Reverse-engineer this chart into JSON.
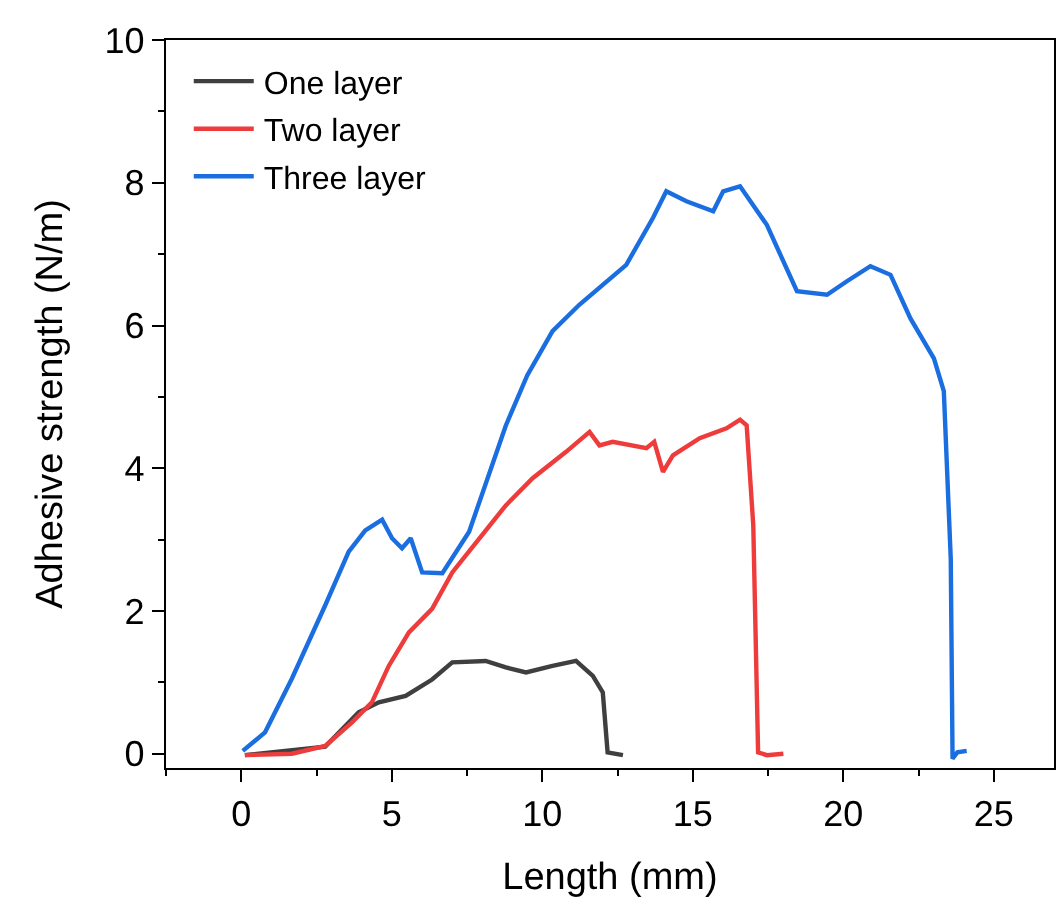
{
  "chart_data": {
    "type": "line",
    "xlabel": "Length (mm)",
    "ylabel": "Adhesive strength (N/m)",
    "xlim": [
      -2.5,
      27
    ],
    "xticks": [
      0,
      5,
      10,
      15,
      20,
      25
    ],
    "ylim": [
      -0.2,
      10
    ],
    "yticks": [
      0,
      2,
      4,
      6,
      8,
      10
    ],
    "legend": "top left",
    "marker": "none",
    "line_style": "solid",
    "series": [
      {
        "name": "One layer",
        "color": "#3f3f3f",
        "x": [
          0.12,
          2.79,
          3.9,
          4.57,
          5.46,
          6.34,
          7.01,
          8.12,
          8.79,
          9.46,
          10.34,
          11.12,
          11.68,
          12.01,
          12.17,
          12.68
        ],
        "values": [
          -0.02,
          0.1,
          0.58,
          0.72,
          0.81,
          1.04,
          1.28,
          1.3,
          1.21,
          1.14,
          1.23,
          1.3,
          1.09,
          0.86,
          0.02,
          -0.02
        ]
      },
      {
        "name": "Two layer",
        "color": "#ee3b3b",
        "x": [
          0.12,
          1.68,
          2.79,
          3.68,
          4.34,
          4.9,
          5.57,
          6.34,
          7.01,
          7.9,
          8.79,
          9.68,
          10.79,
          11.57,
          11.9,
          12.34,
          13.46,
          13.72,
          14.01,
          14.34,
          15.23,
          16.12,
          16.57,
          16.79,
          17.01,
          17.17,
          17.46,
          18.01
        ],
        "values": [
          -0.02,
          0,
          0.11,
          0.44,
          0.72,
          1.23,
          1.7,
          2.03,
          2.54,
          3.01,
          3.48,
          3.86,
          4.23,
          4.51,
          4.32,
          4.37,
          4.28,
          4.37,
          3.95,
          4.18,
          4.42,
          4.56,
          4.68,
          4.6,
          3.2,
          0.02,
          -0.02,
          0
        ]
      },
      {
        "name": "Three layer",
        "color": "#1a6ee0",
        "x": [
          0.05,
          0.79,
          1.68,
          2.79,
          3.57,
          4.12,
          4.68,
          5.01,
          5.34,
          5.63,
          6.01,
          6.68,
          7.57,
          8.79,
          9.5,
          10.34,
          11.23,
          12.79,
          13.68,
          14.12,
          14.79,
          15.68,
          16.01,
          16.57,
          17.46,
          18.46,
          19.46,
          20.12,
          20.9,
          21.57,
          22.23,
          23.01,
          23.34,
          23.57,
          23.63,
          23.79,
          24.1
        ],
        "values": [
          0.04,
          0.3,
          1.05,
          2.08,
          2.83,
          3.13,
          3.28,
          3.02,
          2.88,
          3.02,
          2.54,
          2.53,
          3.11,
          4.6,
          5.3,
          5.92,
          6.29,
          6.85,
          7.51,
          7.88,
          7.74,
          7.6,
          7.88,
          7.95,
          7.41,
          6.48,
          6.43,
          6.62,
          6.83,
          6.71,
          6.1,
          5.54,
          5.08,
          2.73,
          -0.07,
          0.02,
          0.04
        ]
      }
    ]
  }
}
